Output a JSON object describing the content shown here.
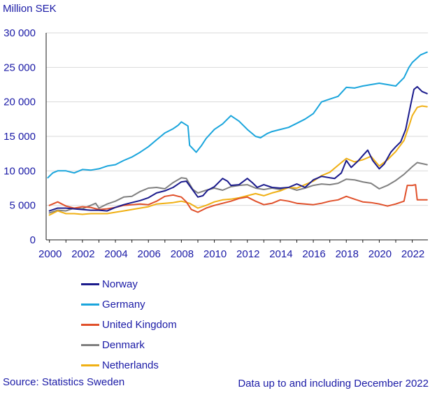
{
  "chart_data": {
    "type": "line",
    "title": "",
    "ylabel": "Million SEK",
    "xlabel": "",
    "ylim": [
      0,
      30000
    ],
    "xlim": [
      1999.8,
      2022.95
    ],
    "yticks": [
      0,
      5000,
      10000,
      15000,
      20000,
      25000,
      30000
    ],
    "ytick_labels": [
      "0",
      "5 000",
      "10 000",
      "15 000",
      "20 000",
      "25 000",
      "30 000"
    ],
    "xticks": [
      2000,
      2002,
      2004,
      2006,
      2008,
      2010,
      2012,
      2014,
      2016,
      2018,
      2020,
      2022
    ],
    "xtick_labels": [
      "2000",
      "2002",
      "2004",
      "2006",
      "2008",
      "2010",
      "2012",
      "2014",
      "2016",
      "2018",
      "2020",
      "2022"
    ],
    "grid": "horizontal",
    "legend_position": "bottom-left",
    "series": [
      {
        "name": "Norway",
        "color": "#1a1a8c",
        "points": [
          [
            2000,
            4200
          ],
          [
            2000.5,
            4600
          ],
          [
            2001,
            4600
          ],
          [
            2001.5,
            4500
          ],
          [
            2002,
            4400
          ],
          [
            2002.5,
            4300
          ],
          [
            2003,
            4300
          ],
          [
            2003.5,
            4200
          ],
          [
            2004,
            4700
          ],
          [
            2004.5,
            5100
          ],
          [
            2005,
            5400
          ],
          [
            2005.5,
            5700
          ],
          [
            2006,
            6100
          ],
          [
            2006.5,
            6800
          ],
          [
            2007,
            7100
          ],
          [
            2007.5,
            7600
          ],
          [
            2008,
            8400
          ],
          [
            2008.3,
            8500
          ],
          [
            2008.7,
            7200
          ],
          [
            2009,
            6200
          ],
          [
            2009.3,
            6400
          ],
          [
            2009.6,
            7200
          ],
          [
            2010,
            7700
          ],
          [
            2010.5,
            8900
          ],
          [
            2010.8,
            8500
          ],
          [
            2011,
            7900
          ],
          [
            2011.5,
            8000
          ],
          [
            2012,
            8900
          ],
          [
            2012.3,
            8300
          ],
          [
            2012.6,
            7600
          ],
          [
            2013,
            8000
          ],
          [
            2013.5,
            7600
          ],
          [
            2014,
            7500
          ],
          [
            2014.5,
            7600
          ],
          [
            2015,
            8100
          ],
          [
            2015.5,
            7600
          ],
          [
            2016,
            8700
          ],
          [
            2016.5,
            9200
          ],
          [
            2017,
            9000
          ],
          [
            2017.3,
            8900
          ],
          [
            2017.7,
            9700
          ],
          [
            2018,
            11500
          ],
          [
            2018.3,
            10500
          ],
          [
            2018.7,
            11400
          ],
          [
            2019,
            12200
          ],
          [
            2019.3,
            13000
          ],
          [
            2019.6,
            11500
          ],
          [
            2020,
            10300
          ],
          [
            2020.3,
            11000
          ],
          [
            2020.7,
            12700
          ],
          [
            2021,
            13500
          ],
          [
            2021.3,
            14200
          ],
          [
            2021.6,
            16000
          ],
          [
            2021.9,
            19500
          ],
          [
            2022.1,
            21800
          ],
          [
            2022.3,
            22200
          ],
          [
            2022.6,
            21500
          ],
          [
            2022.9,
            21200
          ]
        ]
      },
      {
        "name": "Germany",
        "color": "#1aa5dc",
        "points": [
          [
            1999.9,
            9000
          ],
          [
            2000.2,
            9700
          ],
          [
            2000.5,
            10000
          ],
          [
            2001,
            10000
          ],
          [
            2001.5,
            9700
          ],
          [
            2002,
            10200
          ],
          [
            2002.5,
            10100
          ],
          [
            2003,
            10300
          ],
          [
            2003.5,
            10700
          ],
          [
            2004,
            10900
          ],
          [
            2004.5,
            11500
          ],
          [
            2005,
            12000
          ],
          [
            2005.5,
            12700
          ],
          [
            2006,
            13500
          ],
          [
            2006.5,
            14500
          ],
          [
            2007,
            15500
          ],
          [
            2007.5,
            16100
          ],
          [
            2007.8,
            16600
          ],
          [
            2008,
            17100
          ],
          [
            2008.4,
            16500
          ],
          [
            2008.5,
            13700
          ],
          [
            2008.9,
            12700
          ],
          [
            2009.2,
            13600
          ],
          [
            2009.5,
            14700
          ],
          [
            2010,
            16000
          ],
          [
            2010.5,
            16800
          ],
          [
            2011,
            18000
          ],
          [
            2011.5,
            17200
          ],
          [
            2012,
            16000
          ],
          [
            2012.5,
            15000
          ],
          [
            2012.8,
            14800
          ],
          [
            2013.2,
            15400
          ],
          [
            2013.5,
            15700
          ],
          [
            2014,
            16000
          ],
          [
            2014.5,
            16300
          ],
          [
            2015,
            16900
          ],
          [
            2015.5,
            17500
          ],
          [
            2016,
            18300
          ],
          [
            2016.5,
            20000
          ],
          [
            2017,
            20400
          ],
          [
            2017.5,
            20800
          ],
          [
            2018,
            22100
          ],
          [
            2018.5,
            22000
          ],
          [
            2019,
            22300
          ],
          [
            2019.5,
            22500
          ],
          [
            2020,
            22700
          ],
          [
            2020.5,
            22500
          ],
          [
            2021,
            22300
          ],
          [
            2021.5,
            23500
          ],
          [
            2021.8,
            25000
          ],
          [
            2022,
            25700
          ],
          [
            2022.5,
            26800
          ],
          [
            2022.9,
            27200
          ]
        ]
      },
      {
        "name": "United Kingdom",
        "color": "#e0502a",
        "points": [
          [
            2000,
            5000
          ],
          [
            2000.5,
            5500
          ],
          [
            2001,
            4900
          ],
          [
            2001.5,
            4600
          ],
          [
            2002,
            4800
          ],
          [
            2002.5,
            4700
          ],
          [
            2003,
            4400
          ],
          [
            2003.5,
            4500
          ],
          [
            2004,
            4700
          ],
          [
            2004.5,
            5000
          ],
          [
            2005,
            5100
          ],
          [
            2005.5,
            5200
          ],
          [
            2006,
            5100
          ],
          [
            2006.5,
            5600
          ],
          [
            2007,
            6300
          ],
          [
            2007.5,
            6500
          ],
          [
            2008,
            6200
          ],
          [
            2008.3,
            5500
          ],
          [
            2008.6,
            4400
          ],
          [
            2009,
            4000
          ],
          [
            2009.5,
            4600
          ],
          [
            2010,
            5000
          ],
          [
            2010.5,
            5300
          ],
          [
            2011,
            5600
          ],
          [
            2011.5,
            6000
          ],
          [
            2012,
            6200
          ],
          [
            2012.5,
            5600
          ],
          [
            2013,
            5100
          ],
          [
            2013.5,
            5300
          ],
          [
            2014,
            5800
          ],
          [
            2014.5,
            5600
          ],
          [
            2015,
            5300
          ],
          [
            2015.5,
            5200
          ],
          [
            2016,
            5100
          ],
          [
            2016.5,
            5300
          ],
          [
            2017,
            5600
          ],
          [
            2017.5,
            5800
          ],
          [
            2018,
            6300
          ],
          [
            2018.5,
            5900
          ],
          [
            2019,
            5500
          ],
          [
            2019.5,
            5400
          ],
          [
            2020,
            5200
          ],
          [
            2020.5,
            4900
          ],
          [
            2021,
            5200
          ],
          [
            2021.5,
            5600
          ],
          [
            2021.7,
            7900
          ],
          [
            2022,
            7900
          ],
          [
            2022.2,
            8000
          ],
          [
            2022.3,
            5800
          ],
          [
            2022.9,
            5800
          ]
        ]
      },
      {
        "name": "Denmark",
        "color": "#808080",
        "points": [
          [
            2000,
            3900
          ],
          [
            2000.5,
            4300
          ],
          [
            2001,
            4200
          ],
          [
            2001.5,
            4600
          ],
          [
            2002,
            4500
          ],
          [
            2002.5,
            5000
          ],
          [
            2002.8,
            5300
          ],
          [
            2003,
            4600
          ],
          [
            2003.5,
            5200
          ],
          [
            2004,
            5600
          ],
          [
            2004.5,
            6200
          ],
          [
            2005,
            6300
          ],
          [
            2005.5,
            7000
          ],
          [
            2006,
            7500
          ],
          [
            2006.5,
            7600
          ],
          [
            2007,
            7400
          ],
          [
            2007.5,
            8300
          ],
          [
            2008,
            9000
          ],
          [
            2008.3,
            8900
          ],
          [
            2008.7,
            7300
          ],
          [
            2009,
            6800
          ],
          [
            2009.5,
            7200
          ],
          [
            2010,
            7500
          ],
          [
            2010.5,
            7200
          ],
          [
            2011,
            7700
          ],
          [
            2011.5,
            7900
          ],
          [
            2012,
            8000
          ],
          [
            2012.5,
            7500
          ],
          [
            2013,
            7300
          ],
          [
            2013.5,
            7500
          ],
          [
            2014,
            7300
          ],
          [
            2014.5,
            7600
          ],
          [
            2015,
            7200
          ],
          [
            2015.5,
            7500
          ],
          [
            2016,
            7900
          ],
          [
            2016.5,
            8100
          ],
          [
            2017,
            8000
          ],
          [
            2017.5,
            8200
          ],
          [
            2018,
            8800
          ],
          [
            2018.5,
            8700
          ],
          [
            2019,
            8400
          ],
          [
            2019.5,
            8200
          ],
          [
            2020,
            7400
          ],
          [
            2020.5,
            7900
          ],
          [
            2021,
            8600
          ],
          [
            2021.5,
            9500
          ],
          [
            2022,
            10600
          ],
          [
            2022.3,
            11200
          ],
          [
            2022.9,
            10900
          ]
        ]
      },
      {
        "name": "Netherlands",
        "color": "#f0b014",
        "points": [
          [
            2000,
            3600
          ],
          [
            2000.5,
            4200
          ],
          [
            2001,
            3800
          ],
          [
            2001.5,
            3800
          ],
          [
            2002,
            3700
          ],
          [
            2002.5,
            3800
          ],
          [
            2003,
            3800
          ],
          [
            2003.5,
            3800
          ],
          [
            2004,
            4000
          ],
          [
            2004.5,
            4200
          ],
          [
            2005,
            4400
          ],
          [
            2005.5,
            4600
          ],
          [
            2006,
            4800
          ],
          [
            2006.5,
            5200
          ],
          [
            2007,
            5300
          ],
          [
            2007.5,
            5400
          ],
          [
            2008,
            5600
          ],
          [
            2008.5,
            5300
          ],
          [
            2009,
            4600
          ],
          [
            2009.5,
            5000
          ],
          [
            2010,
            5500
          ],
          [
            2010.5,
            5800
          ],
          [
            2011,
            5900
          ],
          [
            2011.5,
            6100
          ],
          [
            2012,
            6400
          ],
          [
            2012.5,
            6700
          ],
          [
            2013,
            6400
          ],
          [
            2013.5,
            6800
          ],
          [
            2014,
            7100
          ],
          [
            2014.5,
            7600
          ],
          [
            2015,
            7500
          ],
          [
            2015.5,
            8000
          ],
          [
            2016,
            8500
          ],
          [
            2016.5,
            9300
          ],
          [
            2017,
            9800
          ],
          [
            2017.5,
            10800
          ],
          [
            2018,
            11800
          ],
          [
            2018.5,
            11300
          ],
          [
            2019,
            11600
          ],
          [
            2019.5,
            12100
          ],
          [
            2020,
            10700
          ],
          [
            2020.5,
            11600
          ],
          [
            2021,
            12800
          ],
          [
            2021.5,
            14400
          ],
          [
            2021.8,
            16500
          ],
          [
            2022,
            18000
          ],
          [
            2022.3,
            19200
          ],
          [
            2022.6,
            19400
          ],
          [
            2022.9,
            19300
          ]
        ]
      }
    ]
  },
  "page": {
    "source": "Source: Statistics Sweden",
    "note": "Data up to and including  December 2022"
  }
}
